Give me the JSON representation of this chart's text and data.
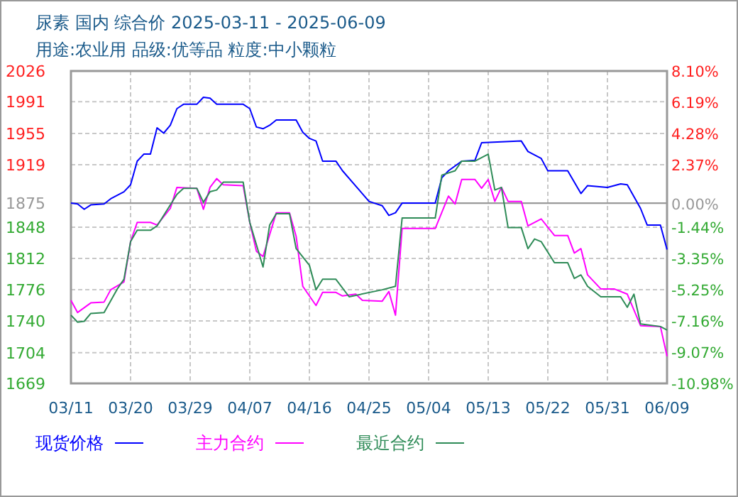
{
  "chart_data": {
    "type": "line",
    "title": "尿素 国内 综合价 2025-03-11 - 2025-06-09",
    "subtitle": "用途:农业用 品级:优等品 粒度:中小颗粒",
    "xlim": [
      "2025-03-11",
      "2025-06-09"
    ],
    "xticks": [
      {
        "value": "2025-03-11",
        "label": "03/11"
      },
      {
        "value": "2025-03-20",
        "label": "03/20"
      },
      {
        "value": "2025-03-29",
        "label": "03/29"
      },
      {
        "value": "2025-04-07",
        "label": "04/07"
      },
      {
        "value": "2025-04-16",
        "label": "04/16"
      },
      {
        "value": "2025-04-25",
        "label": "04/25"
      },
      {
        "value": "2025-05-04",
        "label": "05/04"
      },
      {
        "value": "2025-05-13",
        "label": "05/13"
      },
      {
        "value": "2025-05-22",
        "label": "05/22"
      },
      {
        "value": "2025-05-31",
        "label": "05/31"
      },
      {
        "value": "2025-06-09",
        "label": "06/09"
      }
    ],
    "ylim": [
      1669,
      2026
    ],
    "yticks": [
      1669,
      1704,
      {
        "value": 1740.4,
        "label": "1740"
      },
      {
        "value": 1776.1,
        "label": "1776"
      },
      {
        "value": 1811.8,
        "label": "1812"
      },
      {
        "value": 1847.5,
        "label": "1848"
      },
      1875,
      {
        "value": 1918.9,
        "label": "1919"
      },
      {
        "value": 1954.6,
        "label": "1955"
      },
      1991,
      2026
    ],
    "y2lim": [
      -10.98,
      8.1
    ],
    "y2ticks": [
      {
        "value": -10.98,
        "label": "-10.98%"
      },
      {
        "value": -9.07,
        "label": "-9.07%"
      },
      {
        "value": -7.16,
        "label": "-7.16%"
      },
      {
        "value": -5.25,
        "label": "-5.25%"
      },
      {
        "value": -3.35,
        "label": "-3.35%"
      },
      {
        "value": -1.44,
        "label": "-1.44%"
      },
      {
        "value": 0,
        "label": "0.00%"
      },
      {
        "value": 2.37,
        "label": "2.37%"
      },
      {
        "value": 4.28,
        "label": "4.28%"
      },
      {
        "value": 6.19,
        "label": "6.19%"
      },
      {
        "value": 8.1,
        "label": "8.10%"
      }
    ],
    "grid": true,
    "legend": "bottom",
    "ref_lines": [
      {
        "axis": "y",
        "value": 1875,
        "color": "#999999"
      }
    ],
    "series": [
      {
        "name": "现货价格",
        "color": "#0000ff",
        "x": [
          "2025-03-11",
          "2025-03-12",
          "2025-03-13",
          "2025-03-14",
          "2025-03-16",
          "2025-03-17",
          "2025-03-19",
          "2025-03-20",
          "2025-03-21",
          "2025-03-22",
          "2025-03-23",
          "2025-03-24",
          "2025-03-25",
          "2025-03-26",
          "2025-03-27",
          "2025-03-28",
          "2025-03-30",
          "2025-03-31",
          "2025-04-01",
          "2025-04-02",
          "2025-04-06",
          "2025-04-07",
          "2025-04-08",
          "2025-04-09",
          "2025-04-10",
          "2025-04-11",
          "2025-04-14",
          "2025-04-15",
          "2025-04-16",
          "2025-04-17",
          "2025-04-18",
          "2025-04-20",
          "2025-04-21",
          "2025-04-25",
          "2025-04-27",
          "2025-04-28",
          "2025-04-29",
          "2025-04-30",
          "2025-05-05",
          "2025-05-06",
          "2025-05-07",
          "2025-05-09",
          "2025-05-11",
          "2025-05-12",
          "2025-05-18",
          "2025-05-19",
          "2025-05-21",
          "2025-05-22",
          "2025-05-25",
          "2025-05-27",
          "2025-05-28",
          "2025-05-31",
          "2025-06-02",
          "2025-06-03",
          "2025-06-05",
          "2025-06-06",
          "2025-06-08",
          "2025-06-09"
        ],
        "values": [
          1875,
          1874,
          1868,
          1873,
          1874,
          1880,
          1888,
          1896,
          1923,
          1931,
          1931,
          1961,
          1955,
          1964,
          1983,
          1988,
          1988,
          1996,
          1995,
          1988,
          1988,
          1983,
          1962,
          1960,
          1964,
          1970,
          1970,
          1956,
          1949,
          1946,
          1923,
          1923,
          1912,
          1877,
          1872,
          1861,
          1864,
          1875,
          1875,
          1904,
          1912,
          1923,
          1924,
          1944,
          1946,
          1934,
          1926,
          1912,
          1912,
          1886,
          1895,
          1893,
          1897,
          1896,
          1869,
          1850,
          1850,
          1822
        ]
      },
      {
        "name": "主力合约",
        "color": "#ff00ff",
        "x": [
          "2025-03-11",
          "2025-03-12",
          "2025-03-14",
          "2025-03-16",
          "2025-03-17",
          "2025-03-19",
          "2025-03-20",
          "2025-03-21",
          "2025-03-23",
          "2025-03-24",
          "2025-03-26",
          "2025-03-27",
          "2025-03-30",
          "2025-03-31",
          "2025-04-01",
          "2025-04-02",
          "2025-04-03",
          "2025-04-06",
          "2025-04-07",
          "2025-04-08",
          "2025-04-09",
          "2025-04-11",
          "2025-04-13",
          "2025-04-14",
          "2025-04-15",
          "2025-04-17",
          "2025-04-18",
          "2025-04-20",
          "2025-04-21",
          "2025-04-23",
          "2025-04-24",
          "2025-04-27",
          "2025-04-28",
          "2025-04-29",
          "2025-04-30",
          "2025-05-05",
          "2025-05-07",
          "2025-05-08",
          "2025-05-09",
          "2025-05-11",
          "2025-05-12",
          "2025-05-13",
          "2025-05-14",
          "2025-05-15",
          "2025-05-16",
          "2025-05-18",
          "2025-05-19",
          "2025-05-21",
          "2025-05-23",
          "2025-05-25",
          "2025-05-26",
          "2025-05-27",
          "2025-05-28",
          "2025-05-30",
          "2025-06-01",
          "2025-06-03",
          "2025-06-05",
          "2025-06-08",
          "2025-06-09"
        ],
        "values": [
          1764,
          1750,
          1761,
          1762,
          1776,
          1785,
          1831,
          1853,
          1853,
          1850,
          1869,
          1893,
          1892,
          1868,
          1893,
          1903,
          1896,
          1895,
          1853,
          1820,
          1814,
          1864,
          1864,
          1837,
          1780,
          1758,
          1773,
          1773,
          1769,
          1771,
          1764,
          1763,
          1774,
          1747,
          1846,
          1846,
          1883,
          1874,
          1902,
          1902,
          1892,
          1902,
          1877,
          1893,
          1877,
          1877,
          1849,
          1857,
          1838,
          1838,
          1818,
          1823,
          1793,
          1777,
          1777,
          1771,
          1735,
          1734,
          1700
        ]
      },
      {
        "name": "最近合约",
        "color": "#2e8b57",
        "x": [
          "2025-03-11",
          "2025-03-12",
          "2025-03-13",
          "2025-03-14",
          "2025-03-16",
          "2025-03-18",
          "2025-03-19",
          "2025-03-20",
          "2025-03-21",
          "2025-03-23",
          "2025-03-24",
          "2025-03-27",
          "2025-03-28",
          "2025-03-30",
          "2025-03-31",
          "2025-04-01",
          "2025-04-02",
          "2025-04-03",
          "2025-04-06",
          "2025-04-07",
          "2025-04-09",
          "2025-04-10",
          "2025-04-11",
          "2025-04-13",
          "2025-04-14",
          "2025-04-16",
          "2025-04-17",
          "2025-04-18",
          "2025-04-20",
          "2025-04-22",
          "2025-04-27",
          "2025-04-29",
          "2025-04-30",
          "2025-05-05",
          "2025-05-06",
          "2025-05-08",
          "2025-05-09",
          "2025-05-11",
          "2025-05-13",
          "2025-05-14",
          "2025-05-15",
          "2025-05-16",
          "2025-05-18",
          "2025-05-19",
          "2025-05-20",
          "2025-05-21",
          "2025-05-23",
          "2025-05-25",
          "2025-05-26",
          "2025-05-27",
          "2025-05-28",
          "2025-05-30",
          "2025-06-02",
          "2025-06-03",
          "2025-06-04",
          "2025-06-05",
          "2025-06-08",
          "2025-06-09"
        ],
        "values": [
          1747,
          1739,
          1740,
          1749,
          1750,
          1777,
          1788,
          1831,
          1844,
          1844,
          1849,
          1885,
          1892,
          1892,
          1876,
          1888,
          1890,
          1899,
          1899,
          1853,
          1802,
          1850,
          1863,
          1863,
          1823,
          1804,
          1776,
          1788,
          1788,
          1768,
          1776,
          1780,
          1858,
          1858,
          1907,
          1912,
          1923,
          1923,
          1931,
          1890,
          1893,
          1847,
          1847,
          1823,
          1834,
          1831,
          1807,
          1807,
          1789,
          1793,
          1780,
          1768,
          1768,
          1756,
          1771,
          1737,
          1734,
          1730
        ]
      }
    ]
  }
}
